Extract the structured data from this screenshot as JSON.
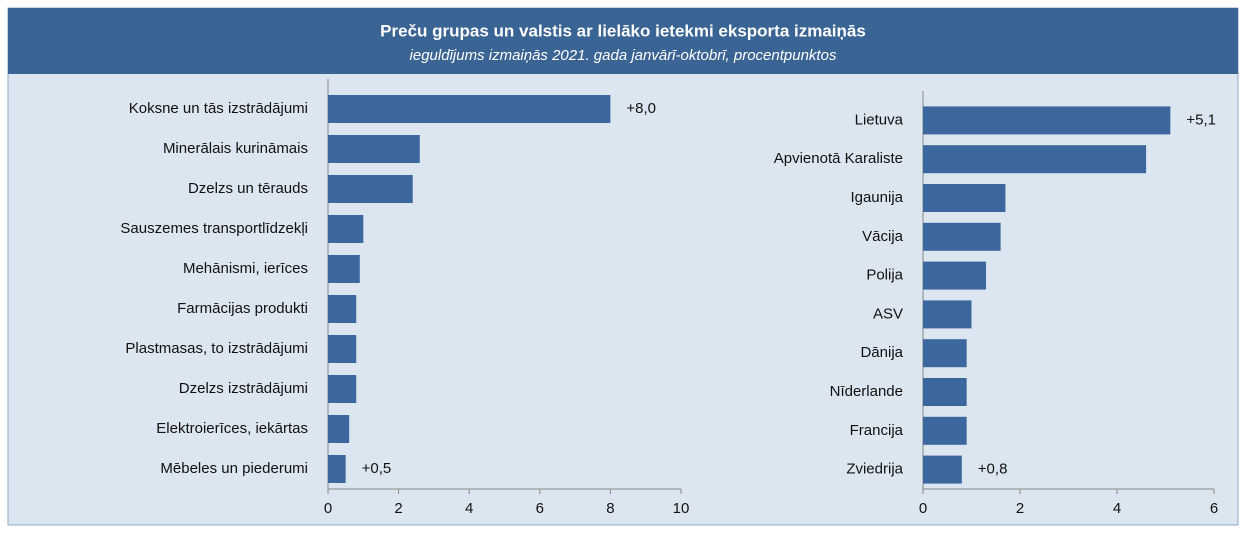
{
  "header": {
    "title": "Preču grupas un valstis ar lielāko ietekmi eksporta izmaiņās",
    "subtitle": "ieguldījums izmaiņās 2021. gada janvārī-oktobrī, procentpunktos"
  },
  "chart_data": [
    {
      "type": "barh",
      "color": "#3c679e",
      "categories": [
        "Koksne un tās izstrādājumi",
        "Minerālais kurināmais",
        "Dzelzs un tērauds",
        "Sauszemes transportlīdzekļi",
        "Mehānismi, ierīces",
        "Farmācijas produkti",
        "Plastmasas, to izstrādājumi",
        "Dzelzs izstrādājumi",
        "Elektroierīces, iekārtas",
        "Mēbeles un piederumi"
      ],
      "values": [
        8.0,
        2.6,
        2.4,
        1.0,
        0.9,
        0.8,
        0.8,
        0.8,
        0.6,
        0.5
      ],
      "value_labels": [
        "+8,0",
        null,
        null,
        null,
        null,
        null,
        null,
        null,
        null,
        "+0,5"
      ],
      "xlim": [
        0,
        10
      ],
      "xticks": [
        0,
        2,
        4,
        6,
        8,
        10
      ]
    },
    {
      "type": "barh",
      "color": "#3c679e",
      "categories": [
        "Lietuva",
        "Apvienotā Karaliste",
        "Igaunija",
        "Vācija",
        "Polija",
        "ASV",
        "Dānija",
        "Nīderlande",
        "Francija",
        "Zviedrija"
      ],
      "values": [
        5.1,
        4.6,
        1.7,
        1.6,
        1.3,
        1.0,
        0.9,
        0.9,
        0.9,
        0.8
      ],
      "value_labels": [
        "+5,1",
        null,
        null,
        null,
        null,
        null,
        null,
        null,
        null,
        "+0,8"
      ],
      "xlim": [
        0,
        6
      ],
      "xticks": [
        0,
        2,
        4,
        6
      ]
    }
  ]
}
